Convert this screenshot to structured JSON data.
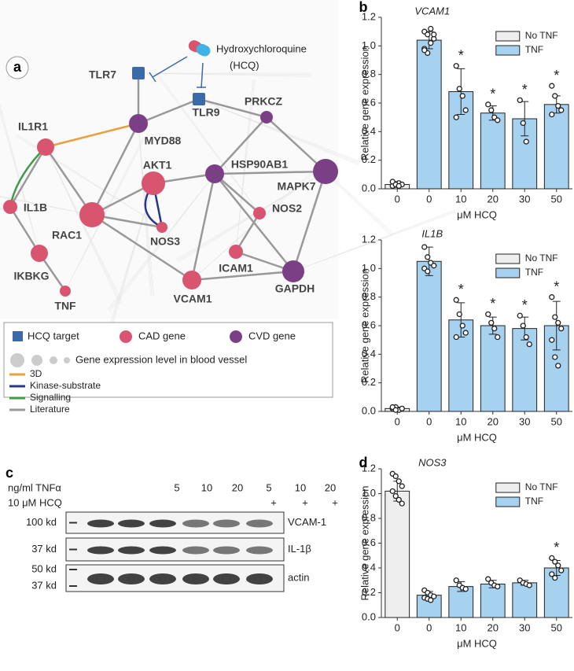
{
  "panel_labels": [
    "a",
    "b",
    "c",
    "d"
  ],
  "network": {
    "drug": [
      "Hydroxychloroquine",
      "(HCQ)"
    ],
    "nodes": [
      {
        "label": "TLR7",
        "color": "#3b6aa8"
      },
      {
        "label": "TLR9",
        "color": "#3b6aa8"
      },
      {
        "label": "PRKCZ",
        "color": "#7b3f86"
      },
      {
        "label": "IL1R1",
        "color": "#d9546e"
      },
      {
        "label": "MYD88",
        "color": "#7b3f86"
      },
      {
        "label": "AKT1",
        "color": "#d9546e"
      },
      {
        "label": "HSP90AB1",
        "color": "#7b3f86"
      },
      {
        "label": "MAPK7",
        "color": "#7b3f86"
      },
      {
        "label": "IL1B",
        "color": "#d9546e"
      },
      {
        "label": "RAC1",
        "color": "#d9546e"
      },
      {
        "label": "NOS3",
        "color": "#d9546e"
      },
      {
        "label": "NOS2",
        "color": "#d9546e"
      },
      {
        "label": "IKBKG",
        "color": "#d9546e"
      },
      {
        "label": "ICAM1",
        "color": "#d9546e"
      },
      {
        "label": "TNF",
        "color": "#d9546e"
      },
      {
        "label": "VCAM1",
        "color": "#d9546e"
      },
      {
        "label": "GAPDH",
        "color": "#7b3f86"
      }
    ],
    "legend": [
      {
        "label": "HCQ target",
        "color": "#3b6aa8"
      },
      {
        "label": "CAD gene",
        "color": "#d9546e"
      },
      {
        "label": "CVD gene",
        "color": "#7b3f86"
      },
      {
        "label": "Gene expression level in blood vessel",
        "color": "#cccccc"
      },
      {
        "label": "3D",
        "color": "#e8a040"
      },
      {
        "label": "Kinase-substrate",
        "color": "#2b3589"
      },
      {
        "label": "Signalling",
        "color": "#3f9a47"
      },
      {
        "label": "Literature",
        "color": "#999999"
      }
    ]
  },
  "blot": {
    "treatments": [
      {
        "label": "ng/ml TNFα",
        "values": [
          5,
          10,
          20,
          5,
          10,
          20
        ]
      },
      {
        "label": "10 μM HCQ",
        "values": [
          null,
          null,
          null,
          "+",
          "+",
          "+"
        ]
      }
    ],
    "rows": [
      {
        "markers": [
          "100 kd"
        ],
        "label": "VCAM-1"
      },
      {
        "markers": [
          "37 kd"
        ],
        "label": "IL-1β"
      },
      {
        "markers": [
          "50 kd",
          "37 kd"
        ],
        "label": "actin"
      }
    ]
  },
  "chart_data": [
    {
      "type": "bar",
      "title": "VCAM1",
      "y_label": "Relative gene expression",
      "x_label": "μM HCQ",
      "categories": [
        "0",
        "0",
        "10",
        "20",
        "30",
        "50"
      ],
      "ylim": [
        0,
        1.2
      ],
      "yticks": [
        {
          "value": 0,
          "label": "0.0"
        },
        0.2,
        0.4,
        0.6,
        0.8,
        {
          "value": 1,
          "label": "1.0"
        },
        1.2
      ],
      "legend": "upper right",
      "series": [
        {
          "name": "No TNF",
          "color": "#eeeeee",
          "values": [
            0.03,
            null,
            null,
            null,
            null,
            null
          ],
          "errors": [
            0.02,
            null,
            null,
            null,
            null,
            null
          ],
          "points": [
            [
              0.02,
              0.03,
              0.04,
              0.03,
              0.05,
              0.03,
              0.02
            ],
            null,
            null,
            null,
            null,
            null
          ]
        },
        {
          "name": "TNF",
          "color": "#a6d1ef",
          "values": [
            null,
            1.04,
            0.68,
            0.53,
            0.49,
            0.59
          ],
          "errors": [
            null,
            0.06,
            0.16,
            0.05,
            0.12,
            0.06
          ],
          "points": [
            null,
            [
              1.1,
              1.08,
              1.12,
              1.05,
              0.98,
              0.95,
              1.02,
              1.08,
              0.97
            ],
            [
              0.86,
              0.7,
              0.65,
              0.55,
              0.5
            ],
            [
              0.59,
              0.55,
              0.5,
              0.48
            ],
            [
              0.62,
              0.46,
              0.33
            ],
            [
              0.72,
              0.65,
              0.58,
              0.55,
              0.52
            ]
          ],
          "significance": [
            null,
            null,
            "*",
            "*",
            "*",
            "*"
          ]
        }
      ]
    },
    {
      "type": "bar",
      "title": "IL1B",
      "y_label": "Relative gene expression",
      "x_label": "μM HCQ",
      "categories": [
        "0",
        "0",
        "10",
        "20",
        "30",
        "50"
      ],
      "ylim": [
        0,
        1.2
      ],
      "yticks": [
        {
          "value": 0,
          "label": "0.0"
        },
        0.2,
        0.4,
        0.6,
        0.8,
        {
          "value": 1,
          "label": "1.0"
        },
        1.2
      ],
      "legend": "upper right",
      "series": [
        {
          "name": "No TNF",
          "color": "#eeeeee",
          "values": [
            0.02,
            null,
            null,
            null,
            null,
            null
          ],
          "errors": [
            0.01,
            null,
            null,
            null,
            null,
            null
          ],
          "points": [
            [
              0.02,
              0.03,
              0.01,
              0.02,
              0.03,
              0.01
            ],
            null,
            null,
            null,
            null,
            null
          ]
        },
        {
          "name": "TNF",
          "color": "#a6d1ef",
          "values": [
            null,
            1.05,
            0.64,
            0.6,
            0.58,
            0.6
          ],
          "errors": [
            null,
            0.1,
            0.12,
            0.06,
            0.08,
            0.17
          ],
          "points": [
            null,
            [
              1.15,
              1.08,
              1.04,
              1.02,
              1.0,
              0.98
            ],
            [
              0.78,
              0.68,
              0.6,
              0.55,
              0.52
            ],
            [
              0.68,
              0.62,
              0.58,
              0.52
            ],
            [
              0.67,
              0.6,
              0.52,
              0.47
            ],
            [
              0.8,
              0.66,
              0.62,
              0.58,
              0.5,
              0.38,
              0.32
            ]
          ],
          "significance": [
            null,
            null,
            "*",
            "*",
            "*",
            "*"
          ]
        }
      ]
    },
    {
      "type": "bar",
      "title": "NOS3",
      "y_label": "Relative gene expression",
      "x_label": "μM HCQ",
      "categories": [
        "0",
        "0",
        "10",
        "20",
        "30",
        "50"
      ],
      "ylim": [
        0,
        1.2
      ],
      "yticks": [
        {
          "value": 0,
          "label": "0.0"
        },
        0.2,
        0.4,
        0.6,
        0.8,
        {
          "value": 1,
          "label": "1.0"
        },
        1.2
      ],
      "legend": "upper right",
      "series": [
        {
          "name": "No TNF",
          "color": "#eeeeee",
          "values": [
            1.02,
            null,
            null,
            null,
            null,
            null
          ],
          "errors": [
            0.08,
            null,
            null,
            null,
            null,
            null
          ],
          "points": [
            [
              1.16,
              1.14,
              1.1,
              1.06,
              1.02,
              0.98,
              0.95,
              0.92
            ],
            null,
            null,
            null,
            null,
            null
          ]
        },
        {
          "name": "TNF",
          "color": "#a6d1ef",
          "values": [
            null,
            0.18,
            0.25,
            0.27,
            0.28,
            0.4
          ],
          "errors": [
            null,
            0.03,
            0.04,
            0.03,
            0.02,
            0.06
          ],
          "points": [
            null,
            [
              0.22,
              0.2,
              0.18,
              0.17,
              0.16,
              0.15,
              0.14
            ],
            [
              0.3,
              0.26,
              0.24,
              0.23
            ],
            [
              0.31,
              0.28,
              0.26,
              0.25
            ],
            [
              0.3,
              0.28,
              0.27,
              0.26
            ],
            [
              0.48,
              0.45,
              0.42,
              0.38,
              0.35,
              0.32
            ]
          ],
          "significance": [
            null,
            null,
            null,
            null,
            null,
            "*"
          ]
        }
      ]
    }
  ]
}
